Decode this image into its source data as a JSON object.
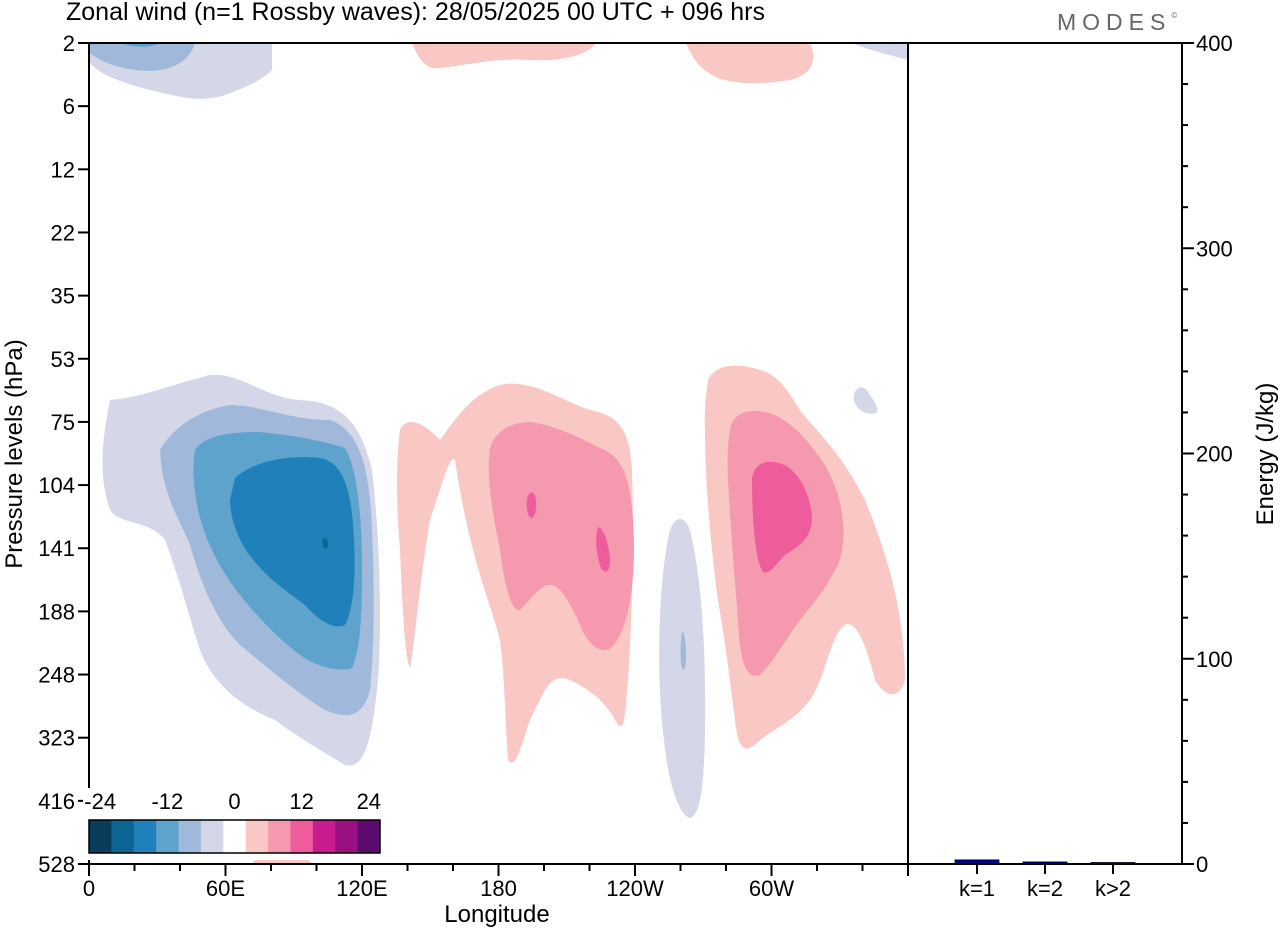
{
  "title": "Zonal wind (n=1 Rossby waves):  28/05/2025  00 UTC  + 096 hrs",
  "brand": "MODES",
  "chart_data": [
    {
      "type": "heatmap",
      "title": "Zonal wind (n=1 Rossby waves):  28/05/2025  00 UTC  + 096 hrs",
      "xlabel": "Longitude",
      "ylabel": "Pressure levels (hPa)",
      "x_tick_labels": [
        "0",
        "60E",
        "120E",
        "180",
        "120W",
        "60W"
      ],
      "y_tick_labels": [
        "2",
        "6",
        "12",
        "22",
        "35",
        "53",
        "75",
        "104",
        "141",
        "188",
        "248",
        "323",
        "416",
        "528"
      ],
      "colorbar": {
        "tick_labels": [
          "-24",
          "-12",
          "0",
          "12",
          "24"
        ],
        "colors": [
          "#0a3d5c",
          "#0d6594",
          "#1f80ba",
          "#5ea3cc",
          "#a0b9da",
          "#d3d7e8",
          "#ffffff",
          "#f9c8c4",
          "#f59aae",
          "#ee5c9c",
          "#c91c8c",
          "#991180",
          "#5c0c6e"
        ]
      },
      "features": [
        {
          "sign": "negative",
          "peak": -24,
          "lon": "100E",
          "level_hpa": 141
        },
        {
          "sign": "positive",
          "peak": 15,
          "lon": "155W",
          "level_hpa": 141
        },
        {
          "sign": "positive",
          "peak": 18,
          "lon": "60W",
          "level_hpa": 120
        },
        {
          "sign": "negative",
          "peak": -6,
          "lon": "95W",
          "level_hpa": 248
        }
      ]
    },
    {
      "type": "bar",
      "ylabel": "Energy (J/kg)",
      "categories": [
        "k=1",
        "k=2",
        "k>2"
      ],
      "values": [
        2,
        1,
        0.5
      ],
      "ylim": [
        0,
        400
      ],
      "y_tick_labels": [
        "0",
        "100",
        "200",
        "300",
        "400"
      ],
      "bar_color": "#00008b"
    }
  ]
}
